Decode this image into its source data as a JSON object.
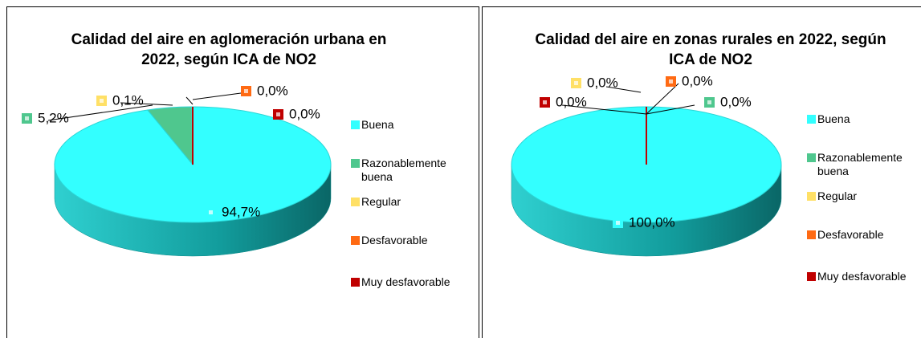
{
  "chart_data": [
    {
      "type": "pie",
      "title": "Calidad del aire en aglomeración urbana  en 2022, según ICA de NO2",
      "categories": [
        "Buena",
        "Razonablemente buena",
        "Regular",
        "Desfavorable",
        "Muy desfavorable"
      ],
      "values": [
        94.7,
        5.2,
        0.1,
        0.0,
        0.0
      ],
      "value_labels": [
        "94,7%",
        "5,2%",
        "0,1%",
        "0,0%",
        "0,0%"
      ],
      "colors": [
        "#33ffff",
        "#4fc78e",
        "#ffe066",
        "#ff6a13",
        "#c00000"
      ]
    },
    {
      "type": "pie",
      "title": "Calidad del aire en zonas rurales en 2022, según ICA de NO2",
      "categories": [
        "Buena",
        "Razonablemente buena",
        "Regular",
        "Desfavorable",
        "Muy desfavorable"
      ],
      "values": [
        100.0,
        0.0,
        0.0,
        0.0,
        0.0
      ],
      "value_labels": [
        "100,0%",
        "0,0%",
        "0,0%",
        "0,0%",
        "0,0%"
      ],
      "colors": [
        "#33ffff",
        "#4fc78e",
        "#ffe066",
        "#ff6a13",
        "#c00000"
      ]
    }
  ]
}
